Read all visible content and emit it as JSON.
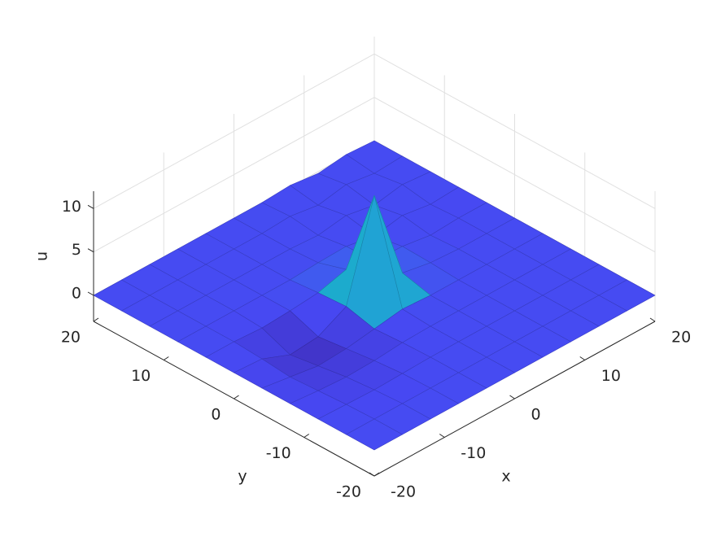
{
  "chart_data": {
    "type": "surface",
    "xlabel": "x",
    "ylabel": "y",
    "zlabel": "u",
    "x": [
      -20,
      -16,
      -12,
      -8,
      -4,
      0,
      4,
      8,
      12,
      16,
      20
    ],
    "y": [
      -20,
      -16,
      -12,
      -8,
      -4,
      0,
      4,
      8,
      12,
      16,
      20
    ],
    "z": [
      [
        0,
        0,
        0,
        0,
        0,
        0,
        0,
        0,
        0,
        0,
        0
      ],
      [
        0,
        0,
        0,
        0,
        0,
        0,
        0,
        0,
        0,
        0,
        0
      ],
      [
        0,
        -0.1,
        -0.2,
        -0.1,
        0,
        0,
        0,
        0,
        0,
        0,
        0
      ],
      [
        0,
        -0.3,
        -0.5,
        -0.4,
        -0.1,
        0,
        0,
        0,
        0,
        0,
        0
      ],
      [
        0,
        -0.5,
        -1,
        -0.8,
        -0.3,
        0.2,
        0,
        0,
        0,
        0,
        0
      ],
      [
        0,
        -0.2,
        -1.5,
        -1.2,
        0.5,
        11.5,
        0.8,
        0.2,
        0,
        0,
        0
      ],
      [
        0,
        0,
        -0.2,
        0,
        0.3,
        1.2,
        0.4,
        0.3,
        -0.2,
        0,
        0
      ],
      [
        0,
        0,
        0,
        0,
        0,
        0.2,
        0.3,
        -0.3,
        0.3,
        -0.2,
        0
      ],
      [
        0,
        0,
        0,
        0,
        0,
        0,
        -0.2,
        0.3,
        -0.3,
        0.3,
        0
      ],
      [
        0,
        0,
        0,
        0,
        0,
        0,
        0.2,
        -0.3,
        0.3,
        -0.2,
        0
      ],
      [
        0,
        0,
        0,
        0,
        0,
        0,
        0,
        0.2,
        -0.2,
        0.2,
        0
      ]
    ],
    "xlim": [
      -20,
      20
    ],
    "ylim": [
      -20,
      20
    ],
    "zlim": [
      -3,
      12
    ],
    "xticks": [
      -20,
      -10,
      0,
      10,
      20
    ],
    "yticks": [
      -20,
      -10,
      0,
      10,
      20
    ],
    "zticks": [
      0,
      5,
      10
    ],
    "clim": [
      -2,
      11.5
    ],
    "colormap": [
      "#3e26a8",
      "#4748f2",
      "#2d8ce8",
      "#17b4c6",
      "#46c387",
      "#b0bd3b",
      "#f6c13b",
      "#f9fb15"
    ],
    "grid": true
  }
}
